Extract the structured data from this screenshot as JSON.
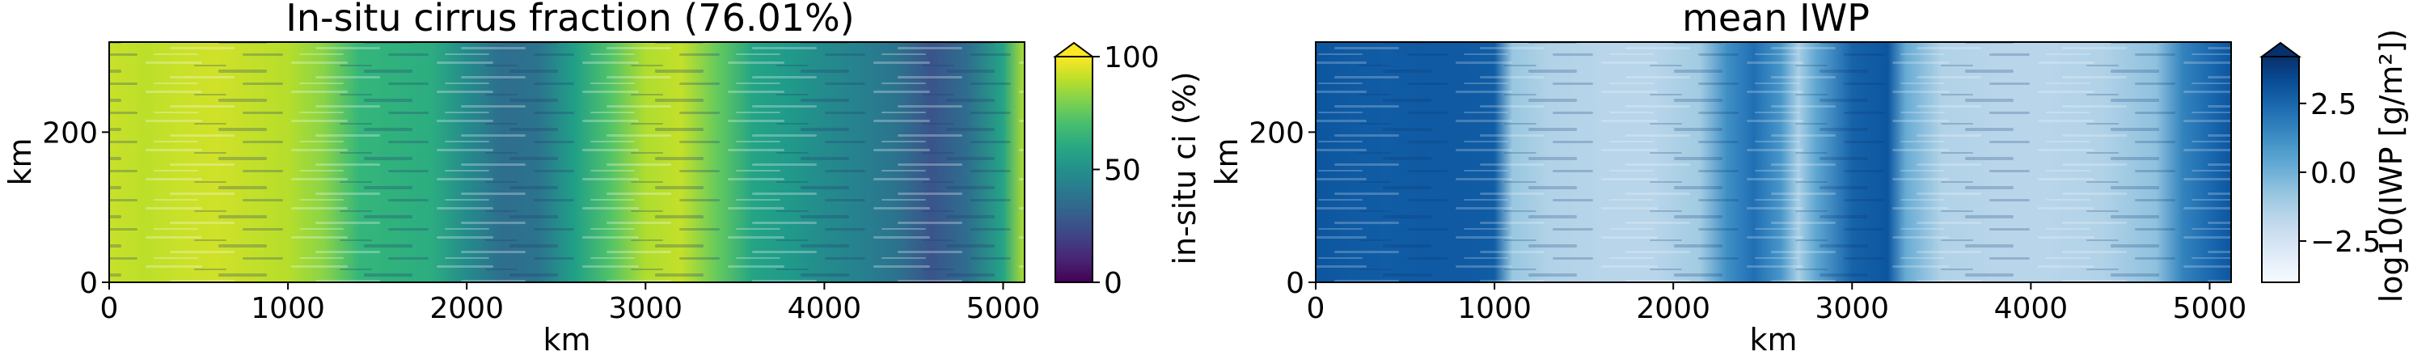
{
  "chart_data": [
    {
      "type": "heatmap",
      "title": "In-situ cirrus fraction (76.01%)",
      "xlabel": "km",
      "ylabel": "km",
      "xlim": [
        0,
        5120
      ],
      "ylim": [
        0,
        320
      ],
      "xticks": [
        0,
        1000,
        2000,
        3000,
        4000,
        5000
      ],
      "yticks": [
        0,
        200
      ],
      "colormap": "viridis",
      "colorbar": {
        "label": "in-situ ci (%)",
        "min": 0,
        "max": 100,
        "ticks": [
          0,
          50,
          100
        ],
        "extend": "max"
      },
      "profile_x_km": [
        0,
        200,
        400,
        600,
        800,
        1000,
        1200,
        1400,
        1600,
        1800,
        2000,
        2200,
        2400,
        2600,
        2800,
        3000,
        3200,
        3400,
        3600,
        3800,
        4000,
        4200,
        4400,
        4600,
        4800,
        5000,
        5120
      ],
      "profile_values": [
        92,
        90,
        92,
        93,
        91,
        89,
        82,
        66,
        64,
        62,
        48,
        36,
        38,
        56,
        72,
        88,
        91,
        76,
        58,
        54,
        48,
        44,
        38,
        26,
        36,
        58,
        88
      ]
    },
    {
      "type": "heatmap",
      "title": "mean IWP",
      "xlabel": "km",
      "ylabel": "km",
      "xlim": [
        0,
        5120
      ],
      "ylim": [
        0,
        320
      ],
      "xticks": [
        0,
        1000,
        2000,
        3000,
        4000,
        5000
      ],
      "yticks": [
        0,
        200
      ],
      "colormap": "Blues",
      "colorbar": {
        "label": "log10(IWP [g/m²])",
        "min": -4,
        "max": 4.2,
        "ticks": [
          -2.5,
          0.0,
          2.5
        ],
        "tick_labels": [
          "−2.5",
          "0.0",
          "2.5"
        ],
        "extend": "max"
      },
      "profile_x_km": [
        0,
        200,
        400,
        600,
        800,
        1000,
        1100,
        1300,
        1600,
        1900,
        2150,
        2300,
        2450,
        2600,
        2700,
        2800,
        3000,
        3200,
        3300,
        3500,
        3800,
        4100,
        4400,
        4700,
        4850,
        5000,
        5120
      ],
      "profile_values": [
        3.0,
        2.9,
        2.8,
        2.9,
        2.9,
        2.8,
        -0.8,
        -1.4,
        -1.6,
        -1.6,
        -1.0,
        1.2,
        2.2,
        1.0,
        -1.2,
        0.4,
        2.6,
        3.0,
        0.2,
        -1.4,
        -1.6,
        -1.6,
        -1.4,
        -0.6,
        1.6,
        2.4,
        3.0
      ]
    }
  ]
}
